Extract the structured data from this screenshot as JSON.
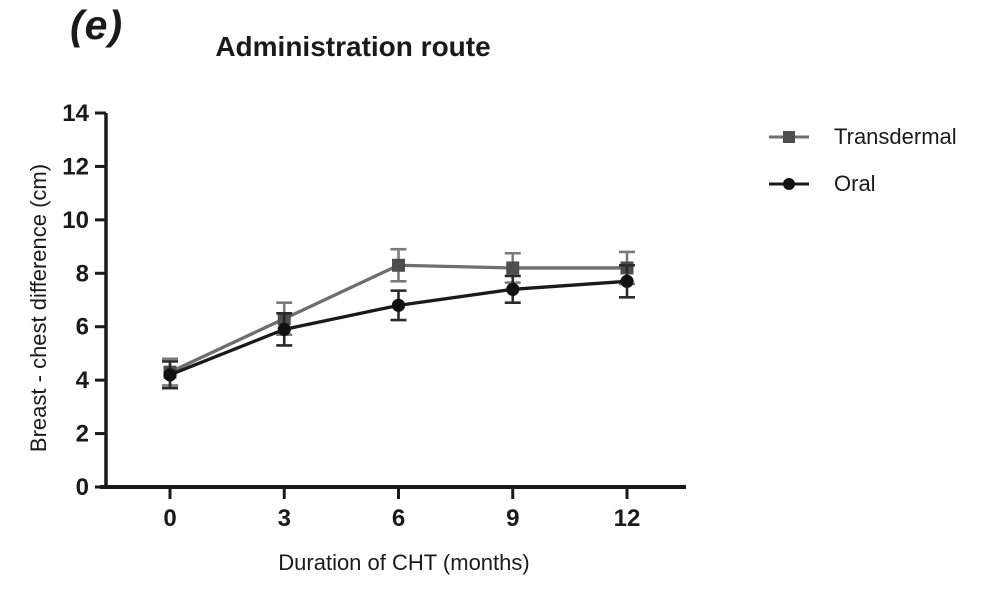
{
  "panel_label": "(e)",
  "title": "Administration route",
  "colors": {
    "axis": "#1a1a1a",
    "text": "#1a1a1a",
    "background": "#ffffff"
  },
  "chart_data": {
    "type": "line",
    "x": [
      0,
      3,
      6,
      9,
      12
    ],
    "series": [
      {
        "name": "Transdermal",
        "values": [
          4.3,
          6.3,
          8.3,
          8.2,
          8.2
        ],
        "errors": [
          0.5,
          0.6,
          0.6,
          0.55,
          0.6
        ],
        "marker": "square",
        "line_color": "#6e6e6e",
        "marker_color": "#4d4d4d",
        "error_color": "#7a7a7a"
      },
      {
        "name": "Oral",
        "values": [
          4.2,
          5.9,
          6.8,
          7.4,
          7.7
        ],
        "errors": [
          0.5,
          0.6,
          0.55,
          0.5,
          0.6
        ],
        "marker": "circle",
        "line_color": "#1a1a1a",
        "marker_color": "#111111",
        "error_color": "#2a2a2a"
      }
    ],
    "title": "Administration route",
    "xlabel": "Duration of CHT (months)",
    "ylabel": "Breast - chest difference (cm)",
    "xticks": [
      0,
      3,
      6,
      9,
      12
    ],
    "yticks": [
      0,
      2,
      4,
      6,
      8,
      10,
      12,
      14
    ],
    "xlim": [
      0,
      12
    ],
    "ylim": [
      0,
      14
    ],
    "grid": false,
    "legend_position": "right",
    "error_bars": true
  }
}
